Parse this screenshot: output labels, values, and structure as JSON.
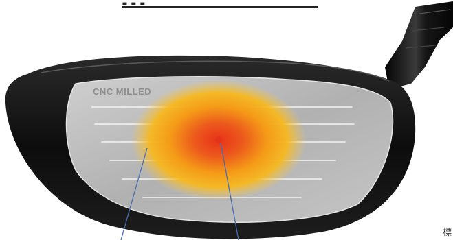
{
  "face_marking": "CNC MILLED",
  "title_fragment": "...",
  "corner_text": "標",
  "colors": {
    "head_black": "#111111",
    "face_silver": "#b9b9b9",
    "sweet_spot_outer": "#f5b21a",
    "sweet_spot_inner": "#e8501a",
    "pointer_lines": "#4a6db0"
  }
}
